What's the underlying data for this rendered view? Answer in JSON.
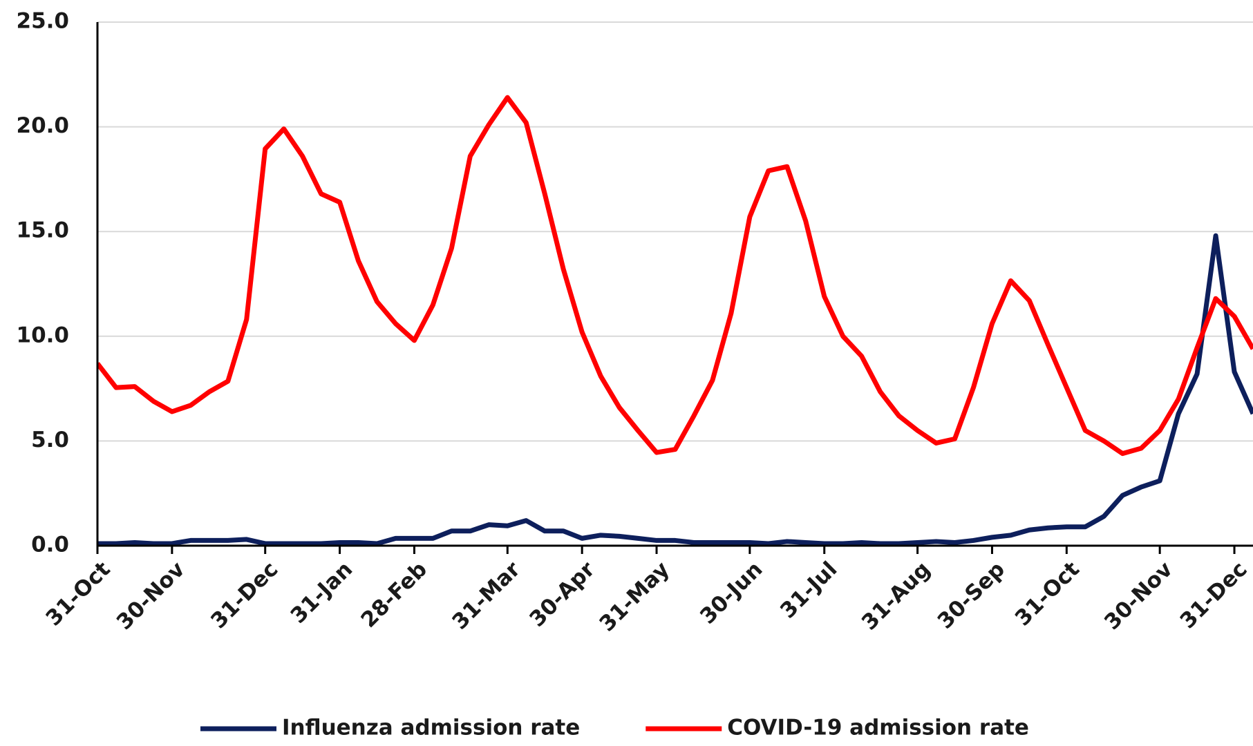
{
  "chart_data": {
    "type": "line",
    "categories": [
      "31-Oct",
      null,
      null,
      null,
      "30-Nov",
      null,
      null,
      null,
      null,
      "31-Dec",
      null,
      null,
      null,
      "31-Jan",
      null,
      null,
      null,
      "28-Feb",
      null,
      null,
      null,
      null,
      "31-Mar",
      null,
      null,
      null,
      "30-Apr",
      null,
      null,
      null,
      "31-May",
      null,
      null,
      null,
      null,
      "30-Jun",
      null,
      null,
      null,
      "31-Jul",
      null,
      null,
      null,
      null,
      "31-Aug",
      null,
      null,
      null,
      "30-Sep",
      null,
      null,
      null,
      "31-Oct",
      null,
      null,
      null,
      null,
      "30-Nov",
      null,
      null,
      null,
      "31-Dec",
      null
    ],
    "series": [
      {
        "name": "Influenza admission rate",
        "color": "#0d1f5c",
        "values": [
          0.1,
          0.1,
          0.15,
          0.1,
          0.1,
          0.25,
          0.25,
          0.25,
          0.3,
          0.1,
          0.1,
          0.1,
          0.1,
          0.15,
          0.15,
          0.1,
          0.35,
          0.35,
          0.35,
          0.7,
          0.7,
          1.0,
          0.95,
          1.2,
          0.7,
          0.7,
          0.35,
          0.5,
          0.45,
          0.35,
          0.25,
          0.25,
          0.15,
          0.15,
          0.15,
          0.15,
          0.1,
          0.2,
          0.15,
          0.1,
          0.1,
          0.15,
          0.1,
          0.1,
          0.15,
          0.2,
          0.15,
          0.25,
          0.4,
          0.5,
          0.75,
          0.85,
          0.9,
          0.9,
          1.4,
          2.4,
          2.8,
          3.1,
          6.3,
          8.2,
          14.8,
          8.3,
          6.3
        ]
      },
      {
        "name": "COVID-19 admission rate",
        "color": "#ff0000",
        "values": [
          8.7,
          7.55,
          7.6,
          6.9,
          6.4,
          6.7,
          7.35,
          7.85,
          10.8,
          18.95,
          19.9,
          18.6,
          16.8,
          16.4,
          13.6,
          11.65,
          10.6,
          9.8,
          11.5,
          14.2,
          18.6,
          20.1,
          21.4,
          20.2,
          16.8,
          13.2,
          10.2,
          8.1,
          6.6,
          5.5,
          4.45,
          4.6,
          6.2,
          7.9,
          11.1,
          15.7,
          17.9,
          18.1,
          15.5,
          11.9,
          10.0,
          9.05,
          7.35,
          6.2,
          5.5,
          4.9,
          5.1,
          7.55,
          10.6,
          12.65,
          11.7,
          9.6,
          7.55,
          5.5,
          5.0,
          4.4,
          4.65,
          5.5,
          7.0,
          9.45,
          11.8,
          10.95,
          9.4
        ]
      }
    ],
    "ylim": [
      0,
      25
    ],
    "yticks": [
      {
        "value": 0,
        "label": "0.0"
      },
      {
        "value": 5,
        "label": "5.0"
      },
      {
        "value": 10,
        "label": "10.0"
      },
      {
        "value": 15,
        "label": "15.0"
      },
      {
        "value": 20,
        "label": "20.0"
      },
      {
        "value": 25,
        "label": "25.0"
      }
    ],
    "grid": true,
    "legend": "bottom"
  }
}
